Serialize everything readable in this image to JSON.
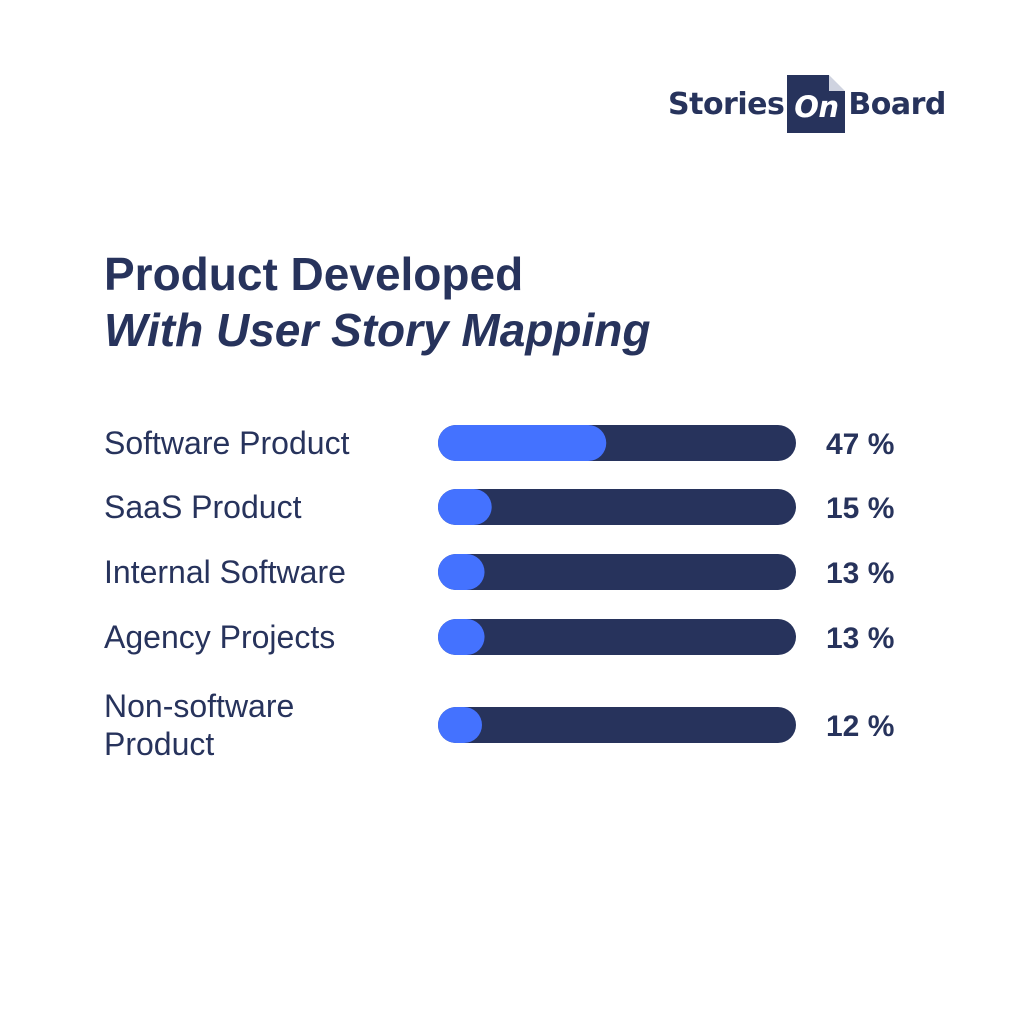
{
  "brand": {
    "logo_left": "Stories",
    "logo_box": "On",
    "logo_right": "Board"
  },
  "title": {
    "line1": "Product Developed",
    "line2": "With User Story Mapping"
  },
  "colors": {
    "track": "#27335c",
    "fill": "#4472ff",
    "text": "#27335c",
    "background": "#ffffff"
  },
  "chart_data": {
    "type": "bar",
    "orientation": "horizontal",
    "title": "Product Developed With User Story Mapping",
    "categories": [
      [
        "Software Product"
      ],
      [
        "SaaS Product"
      ],
      [
        "Internal Software"
      ],
      [
        "Agency Projects"
      ],
      [
        "Non-software",
        "Product"
      ]
    ],
    "values": [
      47,
      15,
      13,
      13,
      12
    ],
    "value_labels": [
      "47 %",
      "15 %",
      "13 %",
      "13 %",
      "12 %"
    ],
    "unit": "%",
    "xlim": [
      0,
      100
    ],
    "grid": false,
    "legend": "none"
  }
}
